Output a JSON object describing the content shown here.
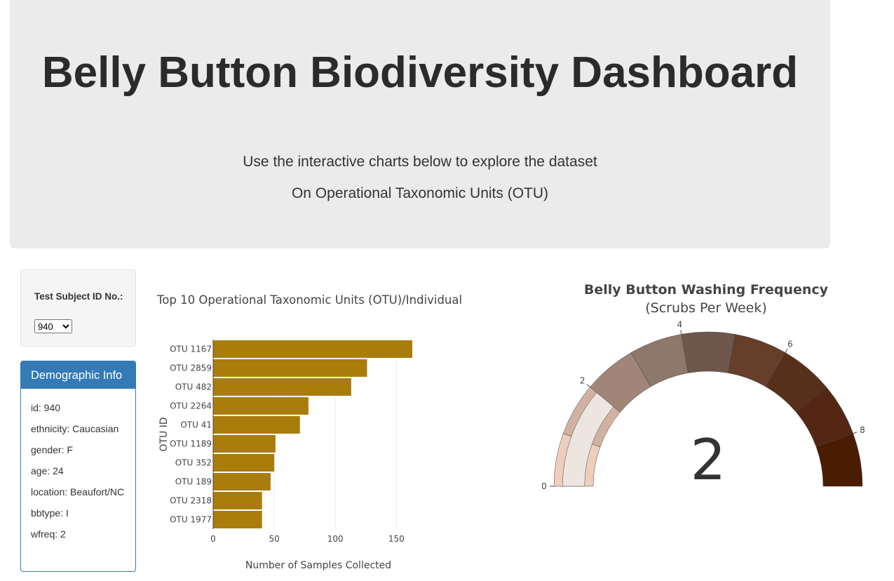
{
  "header": {
    "title": "Belly Button Biodiversity Dashboard",
    "subtitle1": "Use the interactive charts below to explore the dataset",
    "subtitle2": "On Operational Taxonomic Units (OTU)"
  },
  "selector": {
    "label": "Test Subject ID No.:",
    "selected": "940"
  },
  "demographic": {
    "heading": "Demographic Info",
    "items": [
      "id: 940",
      "ethnicity: Caucasian",
      "gender: F",
      "age: 24",
      "location: Beaufort/NC",
      "bbtype: I",
      "wfreq: 2"
    ]
  },
  "chart_data": [
    {
      "type": "bar",
      "orientation": "horizontal",
      "title": "Top 10 Operational Taxonomic Units (OTU)/Individual",
      "xlabel": "Number of Samples Collected",
      "ylabel": "OTU ID",
      "xlim": [
        0,
        163
      ],
      "xticks": [
        0,
        50,
        100,
        150
      ],
      "categories": [
        "OTU 1167",
        "OTU 2859",
        "OTU 482",
        "OTU 2264",
        "OTU 41",
        "OTU 1189",
        "OTU 352",
        "OTU 189",
        "OTU 2318",
        "OTU 1977"
      ],
      "values": [
        163,
        126,
        113,
        78,
        71,
        51,
        50,
        47,
        40,
        40
      ],
      "color": "#a97d0c",
      "grid": true
    },
    {
      "type": "gauge",
      "title": "Belly Button Washing Frequency",
      "subtitle": "(Scrubs Per Week)",
      "value": 2,
      "range": [
        0,
        9
      ],
      "ticks": [
        0,
        2,
        4,
        6,
        8
      ],
      "step_colors": [
        "#eecdbb",
        "#d1b2a1",
        "#a08578",
        "#8e776b",
        "#6f574c",
        "#663f2b",
        "#57301c",
        "#532714",
        "#4a1c02"
      ],
      "bar_color": "#ede5e0"
    }
  ]
}
